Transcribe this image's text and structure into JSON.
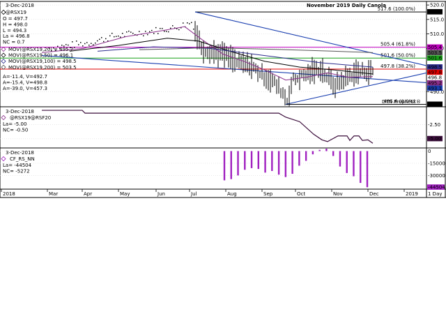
{
  "chart_data": [
    {
      "type": "line",
      "panel": "price",
      "title": "November 2019 Daily Canola",
      "date": "3-Dec-2018",
      "symbol": "@RSX19",
      "ohlc": [
        {
          "label": "O",
          "value": "497.7"
        },
        {
          "label": "H",
          "value": "498.0"
        },
        {
          "label": "L",
          "value": "494.3"
        },
        {
          "label": "La",
          "value": "496.8"
        },
        {
          "label": "NC",
          "value": "0.7"
        }
      ],
      "moving_averages": [
        {
          "name": "MOV(@RSX19,20)",
          "value": "495.2",
          "color": "#8b2f8b"
        },
        {
          "name": "MOV(@RSX19,50)",
          "value": "496.1",
          "color": "#000000"
        },
        {
          "name": "MOV(@RSX19,100)",
          "value": "498.5",
          "color": "#2b2b8c"
        },
        {
          "name": "MOV(@RSX19,200)",
          "value": "503.5",
          "color": "#555555"
        }
      ],
      "volume_lines": [
        {
          "text": "A=-11.4, V=492.7",
          "color": "#1a3fb0"
        },
        {
          "text": "A=-15.4, V=498.8",
          "color": "#1a3fb0"
        },
        {
          "text": "A=-39.0, V=457.3",
          "color": "#1a3fb0"
        }
      ],
      "fib_levels": [
        {
          "label": "517.6 (100.0%)",
          "value": 517.6,
          "color": "#000000"
        },
        {
          "label": "505.4 (61.8%)",
          "value": 505.4,
          "color": "#c000c0"
        },
        {
          "label": "501.6 (50.0%)",
          "value": 501.6,
          "color": "#1aa01a"
        },
        {
          "label": "497.8 (38.2%)",
          "value": 497.8,
          "color": "#e00000"
        },
        {
          "label": "485.6 (0.0%)",
          "value": 485.6,
          "color": "#000000"
        }
      ],
      "ylim": [
        485,
        521
      ],
      "y_ticks": [
        "520.0",
        "515.0",
        "510.0",
        "505.0",
        "490.0"
      ],
      "y_tick_values": [
        520,
        515,
        510,
        505,
        490
      ],
      "right_boxes": [
        {
          "text": "517.6",
          "value": 517.6,
          "bg": "#000000",
          "fg": "#ffffff"
        },
        {
          "text": "505.4",
          "value": 505.4,
          "bg": "#c000c0",
          "fg": "#ffffff"
        },
        {
          "text": "503.5",
          "value": 503.5,
          "bg": "#555555",
          "fg": "#ffffff"
        },
        {
          "text": "501.6",
          "value": 501.6,
          "bg": "#1aa01a",
          "fg": "#ffffff"
        },
        {
          "text": "498.5",
          "value": 498.5,
          "bg": "#2b2b8c",
          "fg": "#ffffff"
        },
        {
          "text": "497.8",
          "value": 497.8,
          "bg": "#e00000",
          "fg": "#ffffff"
        },
        {
          "text": "496.8",
          "value": 496.8,
          "bg": "#ffffff",
          "fg": "#000000"
        },
        {
          "text": "495.2",
          "value": 495.2,
          "bg": "#8b2f8b",
          "fg": "#ffffff"
        },
        {
          "text": "493.1",
          "value": 493.1,
          "bg": "#1a3fb0",
          "fg": "#ffffff"
        },
        {
          "text": "485.6",
          "value": 485.6,
          "bg": "#000000",
          "fg": "#ffffff"
        }
      ],
      "watermark": "DTN ProphetX®",
      "grid": true
    },
    {
      "type": "line",
      "panel": "spread",
      "date": "3-Dec-2018",
      "symbol": "@RSX19@RSF20",
      "stats": [
        {
          "label": "La",
          "value": "-5.00"
        },
        {
          "label": "NC",
          "value": "-0.50"
        }
      ],
      "ylim": [
        -6.5,
        0.5
      ],
      "y_ticks": [
        "-2.50",
        "-5.00"
      ],
      "y_tick_values": [
        -2.5,
        -5.0
      ],
      "last_box": {
        "text": "-5.00",
        "value": -5.0
      }
    },
    {
      "type": "bar",
      "panel": "cot",
      "date": "3-Dec-2018",
      "symbol": "CF_RS_NN",
      "stats": [
        {
          "label": "La",
          "value": "-44504"
        },
        {
          "label": "NC",
          "value": "-5272"
        }
      ],
      "ylim": [
        -46000,
        3000
      ],
      "y_ticks": [
        "0",
        "-15000",
        "-30000"
      ],
      "y_tick_values": [
        0,
        -15000,
        -30000
      ],
      "last_box": {
        "text": "-44504",
        "value": -44504
      },
      "bar_color": "#a020c0",
      "weeks": [
        0,
        1,
        2,
        3,
        4,
        5,
        6,
        7,
        8,
        9,
        10,
        11,
        12,
        13,
        14,
        15,
        16,
        17,
        18,
        19,
        20,
        21
      ],
      "values": [
        -36000,
        -34500,
        -30000,
        -23000,
        -21000,
        -22000,
        -26500,
        -24500,
        -29000,
        -32000,
        -28000,
        -18000,
        -12000,
        -4000,
        1500,
        3000,
        -6000,
        -19000,
        -27000,
        -31000,
        -39200,
        -44504
      ]
    }
  ],
  "x_axis": {
    "labels": [
      "2018",
      "Mar",
      "Apr",
      "May",
      "Jun",
      "Jul",
      "Aug",
      "Sep",
      "Oct",
      "Nov",
      "Dec",
      "2019"
    ],
    "corner": "1 Day"
  }
}
